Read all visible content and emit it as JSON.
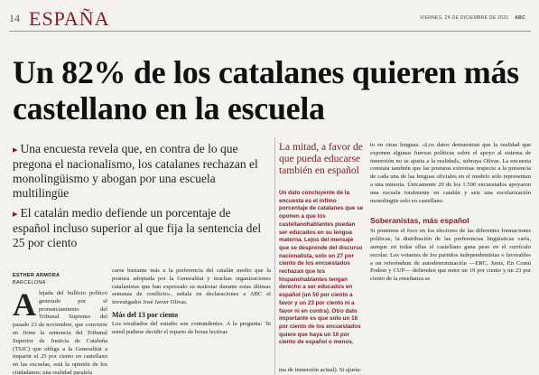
{
  "header": {
    "page_number": "14",
    "section": "ESPAÑA",
    "dateline": "VIERNES, 24 DE DICIEMBRE DE 2021",
    "masthead": "ABC"
  },
  "headline": "Un 82% de los catalanes quieren más castellano en la escuela",
  "subheads": [
    "Una encuesta revela que, en contra de lo que pregona el nacionalismo, los catalanes rechazan el monolingüismo y abogan por una escuela multilingüe",
    "El catalán medio defiende un porcentaje de español incluso superior al que fija la sentencia del 25 por ciento"
  ],
  "bullet_glyph": "▸",
  "byline": {
    "name": "ESTHER ARMORA",
    "place": "BARCELONA"
  },
  "col1": {
    "dropcap": "A",
    "text": "lejada del bullicio político generado por el pronunciamiento del Tribunal Supremo del pasado 23 de noviembre, que convierte en firme la sentencia del Tribunal Superior de Justicia de Cataluña (TSJC) que obliga a la Generalitat a impartir el 25 por ciento en castellano en las escuelas, está la opinión de los ciudadanos; una realidad paralela"
  },
  "col2": {
    "para1": "carse bastante más a la preferencia del catalán medio que la postura adoptada por la Generalitat y muchas organizaciones catalanistas que han expresado su malestar durante estas últimas semanas de conflicto», señala en declaraciones a ABC el investigador José Javier Olivas.",
    "subhead": "Más del 13 por ciento",
    "para2": "Los resultados del estudio son contundentes. A la pregunta: 'Si usted pudiese decidir el reparto de horas lectivas"
  },
  "sidebar": {
    "title": "La mitad, a favor de que pueda educarse también en español",
    "body": "Un dato concluyente de la encuesta es el ínfimo porcentaje de catalanes que se oponen a que los castellanohablantes puedan ser educados en su lengua materna. Lejos del mensaje que se desprende del discurso nacionalista, solo un 27 por ciento de los encuestados rechazan que los hispanohablantes tengan derecho a ser educados en español (un 50 por ciento a favor y un 23 por ciento ni a favor ni en contra). Otro dato importante es que solo un 16 por ciento de los encuestados quiere que haya un 10 por ciento de español o menos."
  },
  "col3": {
    "para1": "to en otras lenguas. «Los datos demuestran que la realidad que exponen algunas fuerzas políticas sobre el apoyo al sistema de inmersión no se ajusta a la realidad», subraya Olivas. La encuesta constata también que las posturas extremas respecto a la presencia de cada una de las lenguas oficiales en el modelo solo representan a una minoría. Únicamente 20 de los 1.500 encuestados apoyaron una escuela totalmente en catalán y seis una escolarización monolingüe solo en castellano.",
    "subhead": "Soberanistas, más español",
    "para2": "Si ponemos el foco en los electores de las diferentes formaciones políticas, la distribución de las preferencias lingüísticas varía, aunque en todas ellas el castellano gana peso en el currículo escolar. Los votantes de los partidos independentistas o favorables a un referéndum de autodeterminación —ERC, Junts, En Comú Podem y CUP— defienden que entre un 19 por ciento y un 23 por ciento de la enseñanza se"
  },
  "bottom_fragment": "ma de inmersión actual). Si ajusta-"
}
